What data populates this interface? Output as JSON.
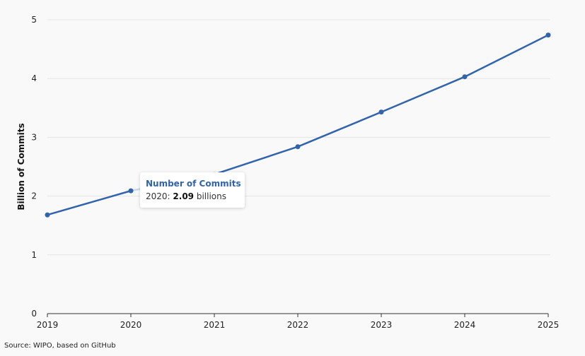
{
  "chart_data": {
    "type": "line",
    "title": "",
    "xlabel": "",
    "ylabel": "Billion of Commits",
    "x": [
      "2019",
      "2020",
      "2021",
      "2022",
      "2023",
      "2024",
      "2025"
    ],
    "series": [
      {
        "name": "Number of Commits",
        "values": [
          1.68,
          2.09,
          2.37,
          2.84,
          3.43,
          4.03,
          4.74
        ]
      }
    ],
    "ylim": [
      0,
      5
    ],
    "yticks": [
      "0",
      "1",
      "2",
      "3",
      "4",
      "5"
    ],
    "grid": true,
    "line_color": "#3164ab",
    "highlight_color": "#c7d8ee"
  },
  "tooltip": {
    "title": "Number of Commits",
    "year": "2020",
    "separator": ": ",
    "value": "2.09",
    "unit": " billions"
  },
  "source": "Source: WIPO, based on GitHub"
}
